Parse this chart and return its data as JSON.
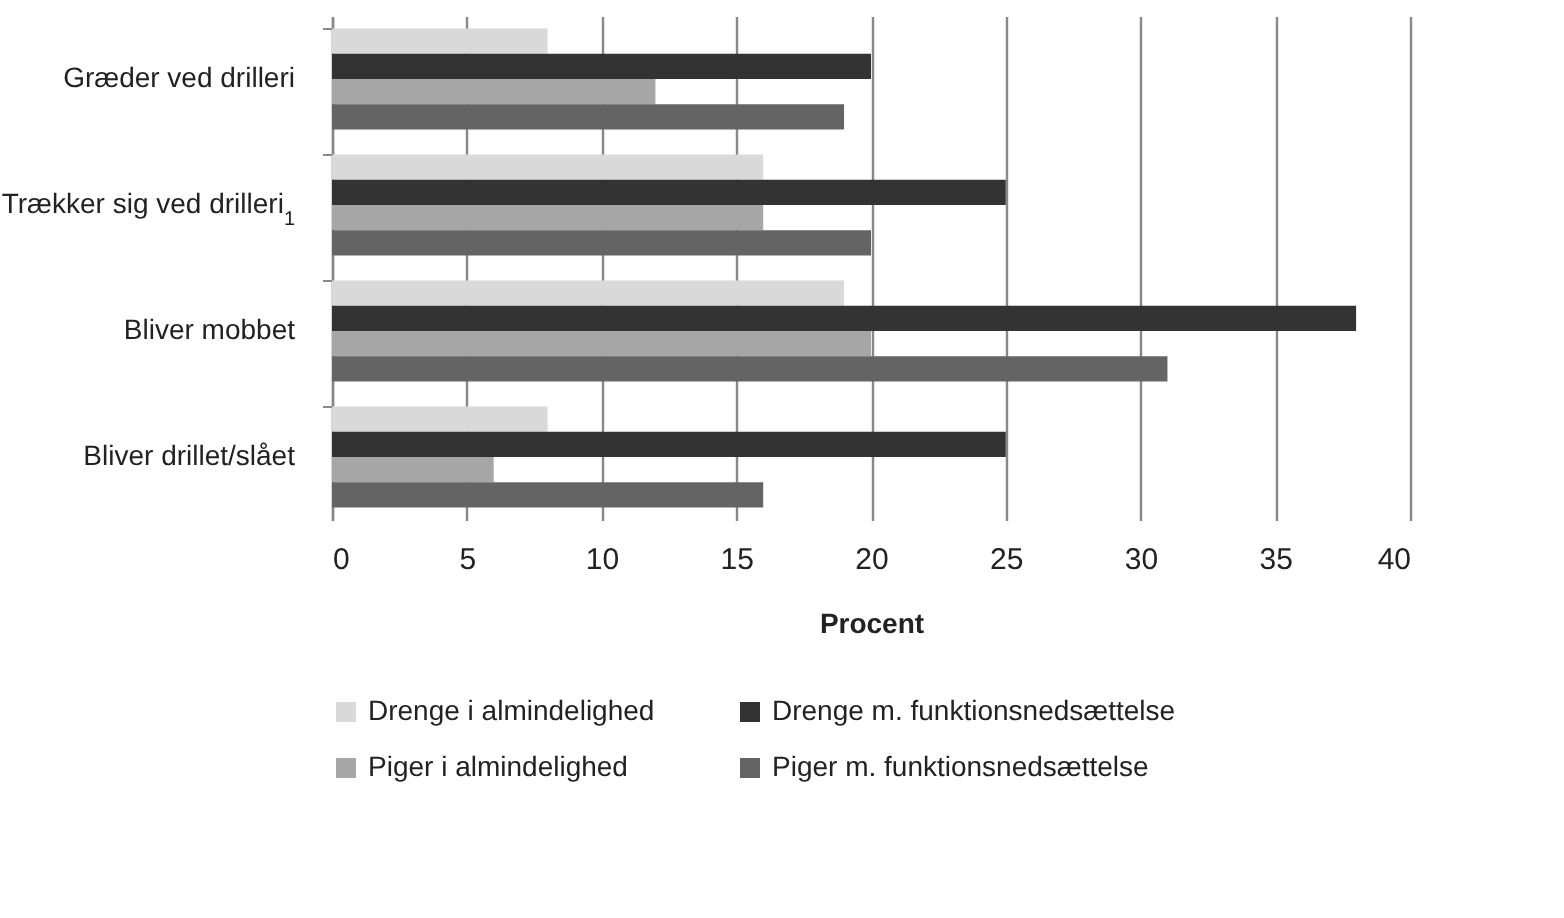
{
  "chart_data": {
    "type": "bar",
    "orientation": "horizontal",
    "xlabel": "Procent",
    "categories": [
      "Græder ved drilleri",
      "Trækker sig ved drilleri$_{1}$",
      "Bliver mobbet",
      "Bliver drillet/slået"
    ],
    "series": [
      {
        "name": "Drenge i almindelighed",
        "color": "#d9d9d9",
        "values": [
          8,
          16,
          19,
          8
        ]
      },
      {
        "name": "Drenge m. funktionsnedsættelse",
        "color": "#333333",
        "values": [
          20,
          25,
          38,
          25
        ]
      },
      {
        "name": "Piger i almindelighed",
        "color": "#a6a6a6",
        "values": [
          12,
          16,
          20,
          6
        ]
      },
      {
        "name": "Piger m. funktionsnedsættelse",
        "color": "#646464",
        "values": [
          19,
          20,
          31,
          16
        ]
      }
    ],
    "xlim": [
      0,
      40
    ],
    "xticks": [
      0,
      5,
      10,
      15,
      20,
      25,
      30,
      35,
      40
    ],
    "grid": "x",
    "legend": "bottom"
  }
}
